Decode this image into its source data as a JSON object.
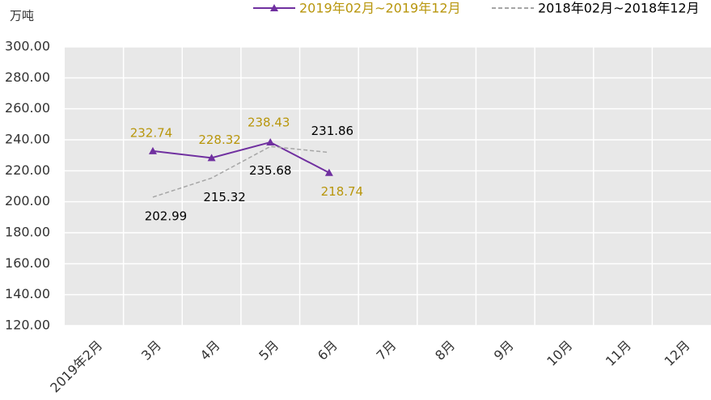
{
  "chart_data": {
    "type": "line",
    "y_unit": "万吨",
    "categories": [
      "2019年2月",
      "3月",
      "4月",
      "5月",
      "6月",
      "7月",
      "8月",
      "9月",
      "10月",
      "11月",
      "12月"
    ],
    "series": [
      {
        "name": "2019年02月~2019年12月",
        "color": "#7030a0",
        "label_color": "#b8960c",
        "marker": "triangle",
        "dash": false,
        "values": [
          null,
          232.74,
          228.32,
          238.43,
          218.74,
          null,
          null,
          null,
          null,
          null,
          null
        ]
      },
      {
        "name": "2018年02月~2018年12月",
        "color": "#a6a6a6",
        "label_color": "#000000",
        "marker": "none",
        "dash": true,
        "values": [
          null,
          202.99,
          215.32,
          235.68,
          231.86,
          null,
          null,
          null,
          null,
          null,
          null
        ]
      }
    ],
    "ylim": [
      120,
      300
    ],
    "yticks": [
      {
        "value": 120,
        "label": "120.00"
      },
      {
        "value": 140,
        "label": "140.00"
      },
      {
        "value": 160,
        "label": "160.00"
      },
      {
        "value": 180,
        "label": "180.00"
      },
      {
        "value": 200,
        "label": "200.00"
      },
      {
        "value": 220,
        "label": "220.00"
      },
      {
        "value": 240,
        "label": "240.00"
      },
      {
        "value": 260,
        "label": "260.00"
      },
      {
        "value": 280,
        "label": "280.00"
      },
      {
        "value": 300,
        "label": "300.00"
      }
    ],
    "grid": true
  }
}
